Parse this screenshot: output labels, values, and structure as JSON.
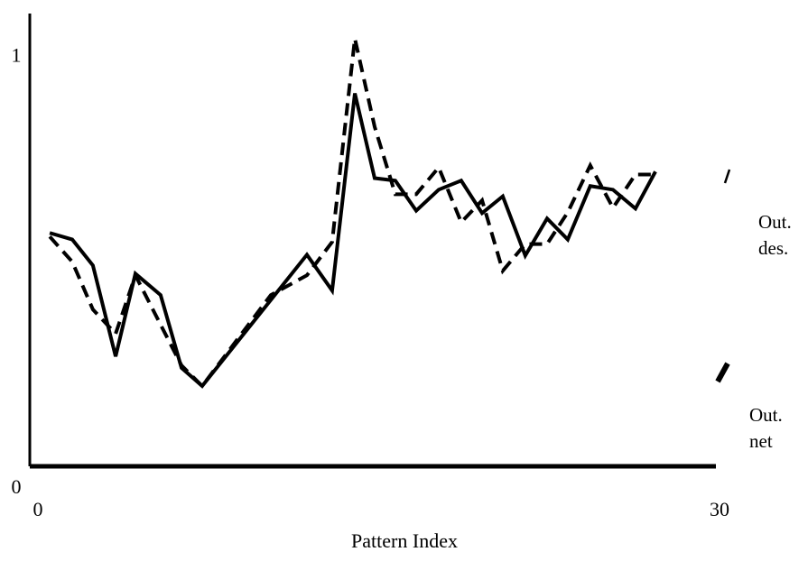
{
  "chart_data": {
    "type": "line",
    "xlabel": "Pattern Index",
    "xlim": [
      0,
      30
    ],
    "ylim": [
      0,
      1.1
    ],
    "xticks": [
      0,
      30
    ],
    "yticks": [
      0,
      1
    ],
    "series": [
      {
        "name": "Out. des.",
        "color": "#000000",
        "style": "dashed",
        "x": [
          0.52,
          1.51,
          2.42,
          3.42,
          4.29,
          5.4,
          6.32,
          7.23,
          10.25,
          11.84,
          12.95,
          13.95,
          14.82,
          15.73,
          16.65,
          17.64,
          18.63,
          19.55,
          20.46,
          21.45,
          22.41,
          23.32,
          24.31,
          25.31,
          26.3,
          27.18
        ],
        "values": [
          0.558,
          0.497,
          0.381,
          0.322,
          0.464,
          0.344,
          0.245,
          0.195,
          0.416,
          0.464,
          0.545,
          1.039,
          0.825,
          0.661,
          0.661,
          0.726,
          0.593,
          0.646,
          0.475,
          0.54,
          0.54,
          0.617,
          0.731,
          0.628,
          0.709,
          0.709
        ]
      },
      {
        "name": "Out. net",
        "color": "#000000",
        "style": "solid",
        "x": [
          0.52,
          1.51,
          2.42,
          3.42,
          4.29,
          5.4,
          6.32,
          7.23,
          11.84,
          12.95,
          13.95,
          14.82,
          15.73,
          16.65,
          17.64,
          18.63,
          19.55,
          20.46,
          21.45,
          22.41,
          23.32,
          24.31,
          25.31,
          26.3,
          27.18
        ],
        "values": [
          0.567,
          0.551,
          0.488,
          0.267,
          0.468,
          0.416,
          0.239,
          0.195,
          0.514,
          0.427,
          0.906,
          0.7,
          0.694,
          0.621,
          0.672,
          0.694,
          0.615,
          0.656,
          0.512,
          0.602,
          0.551,
          0.681,
          0.672,
          0.626,
          0.716
        ]
      }
    ]
  }
}
